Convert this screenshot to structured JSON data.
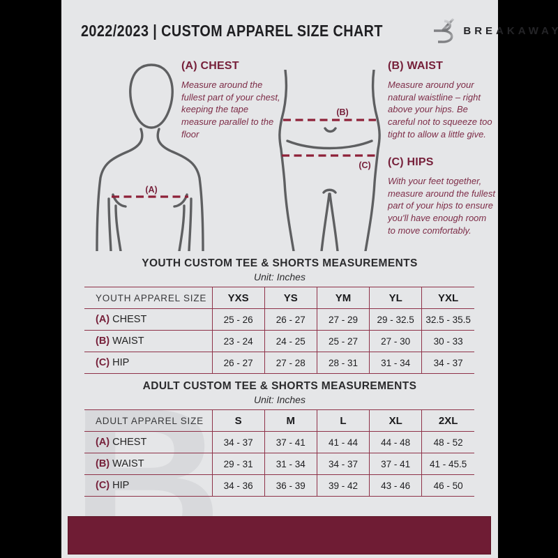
{
  "header": {
    "title": "2022/2023  |  CUSTOM APPAREL SIZE CHART",
    "brand": "BREAKAWAY"
  },
  "watermark": "B",
  "instructions": {
    "chest": {
      "heading": "(A) CHEST",
      "body": "Measure around the fullest part of your chest, keeping the tape measure parallel to the floor"
    },
    "waist": {
      "heading": "(B) WAIST",
      "body": "Measure around your natural waistline – right above your hips. Be careful not to squeeze too tight to allow a little give."
    },
    "hips": {
      "heading": "(C) HIPS",
      "body": "With your feet together, measure around the fullest part of your hips to ensure you'll have enough room to move comfortably."
    }
  },
  "diagram": {
    "chest_label": "(A)",
    "waist_label": "(B)",
    "hip_label": "(C)"
  },
  "tables": [
    {
      "title": "YOUTH CUSTOM TEE & SHORTS MEASUREMENTS",
      "unit": "Unit: Inches",
      "label_header": "YOUTH APPAREL SIZE",
      "size_headers": [
        "YXS",
        "YS",
        "YM",
        "YL",
        "YXL"
      ],
      "rows": [
        {
          "prefix": "(A)",
          "label": "CHEST",
          "values": [
            "25 - 26",
            "26 - 27",
            "27 - 29",
            "29 - 32.5",
            "32.5 - 35.5"
          ]
        },
        {
          "prefix": "(B)",
          "label": "WAIST",
          "values": [
            "23 - 24",
            "24 - 25",
            "25 - 27",
            "27 - 30",
            "30 - 33"
          ]
        },
        {
          "prefix": "(C)",
          "label": "HIP",
          "values": [
            "26 - 27",
            "27 - 28",
            "28 - 31",
            "31 - 34",
            "34 - 37"
          ]
        }
      ]
    },
    {
      "title": "ADULT CUSTOM TEE & SHORTS MEASUREMENTS",
      "unit": "Unit: Inches",
      "label_header": "ADULT APPAREL SIZE",
      "size_headers": [
        "S",
        "M",
        "L",
        "XL",
        "2XL"
      ],
      "rows": [
        {
          "prefix": "(A)",
          "label": "CHEST",
          "values": [
            "34 - 37",
            "37 - 41",
            "41 - 44",
            "44 - 48",
            "48 - 52"
          ]
        },
        {
          "prefix": "(B)",
          "label": "WAIST",
          "values": [
            "29 - 31",
            "31 - 34",
            "34 - 37",
            "37 - 41",
            "41 - 45.5"
          ]
        },
        {
          "prefix": "(C)",
          "label": "HIP",
          "values": [
            "34 - 36",
            "36 - 39",
            "39 - 42",
            "43 - 46",
            "46 - 50"
          ]
        }
      ]
    }
  ],
  "colors": {
    "canvas_bg": "#000000",
    "page_bg": "#e5e6e8",
    "maroon_footer": "#6f1c34",
    "maroon_heading": "#76203a",
    "maroon_body_text": "#7d2c47",
    "dash_line": "#8e2138",
    "table_border": "#8e3148",
    "silhouette": "#5e5f61",
    "title_text": "#1f1f22"
  }
}
